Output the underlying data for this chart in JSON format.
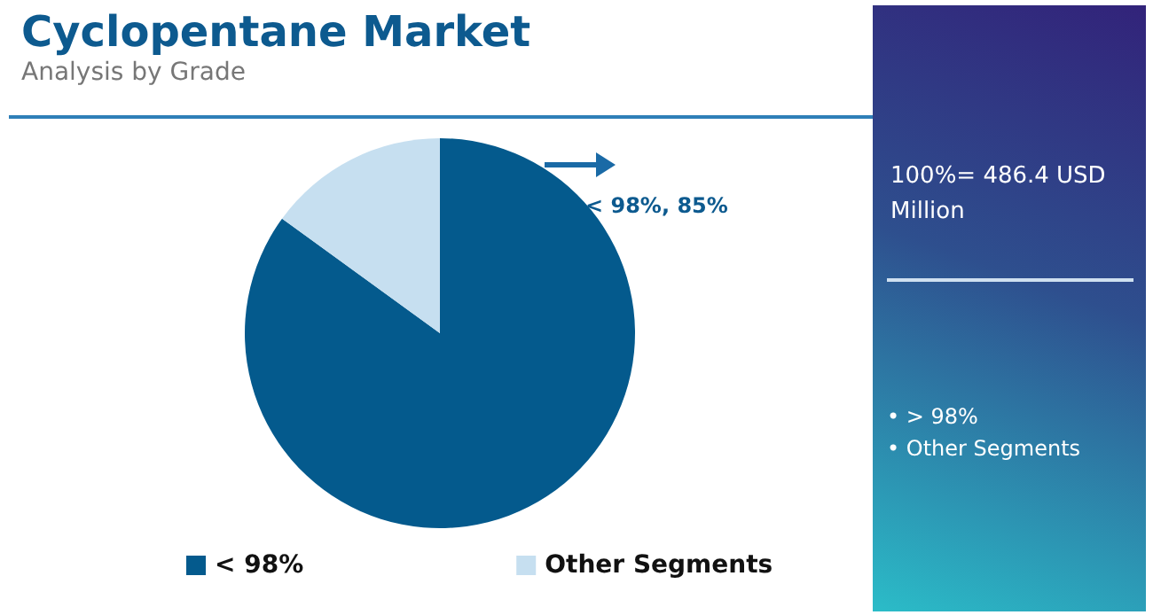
{
  "chart_data": {
    "type": "pie",
    "title": "Cyclopentane Market",
    "subtitle": "Analysis by Grade",
    "categories": [
      "< 98%",
      "Other Segments"
    ],
    "values": [
      85,
      15
    ],
    "colors": [
      "#045a8d",
      "#c6dff0"
    ],
    "value_labels": [
      "< 98%, 85%",
      null
    ],
    "legend": "bottom",
    "annotations": [
      "100%= 486.4 USD Million",
      "• > 98%",
      "• Other Segments"
    ]
  }
}
